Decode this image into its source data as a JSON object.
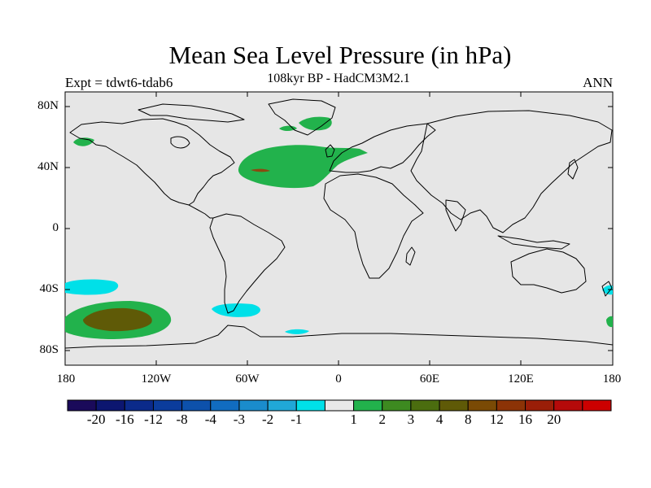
{
  "title": "Mean Sea Level Pressure (in hPa)",
  "subtitle": "108kyr BP - HadCM3M2.1",
  "left_label": "Expt = tdwt6-tdab6",
  "right_label": "ANN",
  "y_ticks": [
    "80N",
    "40N",
    "0",
    "40S",
    "80S"
  ],
  "x_ticks": [
    "180",
    "120W",
    "60W",
    "0",
    "60E",
    "120E",
    "180"
  ],
  "colorbar": {
    "colors": [
      "#1a0a5a",
      "#0c1670",
      "#0b2a8a",
      "#0b3c9c",
      "#0d51ab",
      "#116cc0",
      "#1a8ccc",
      "#20a8d8",
      "#00e0e8",
      "#e8e8e8",
      "#22b24c",
      "#3d8a20",
      "#4b6d0f",
      "#5f5a07",
      "#7a4a05",
      "#8c3306",
      "#9a1e08",
      "#b50a0a",
      "#cc0000"
    ],
    "labels": [
      "-20",
      "-16",
      "-12",
      "-8",
      "-4",
      "-3",
      "-2",
      "-1",
      "1",
      "2",
      "3",
      "4",
      "8",
      "12",
      "16",
      "20"
    ]
  }
}
